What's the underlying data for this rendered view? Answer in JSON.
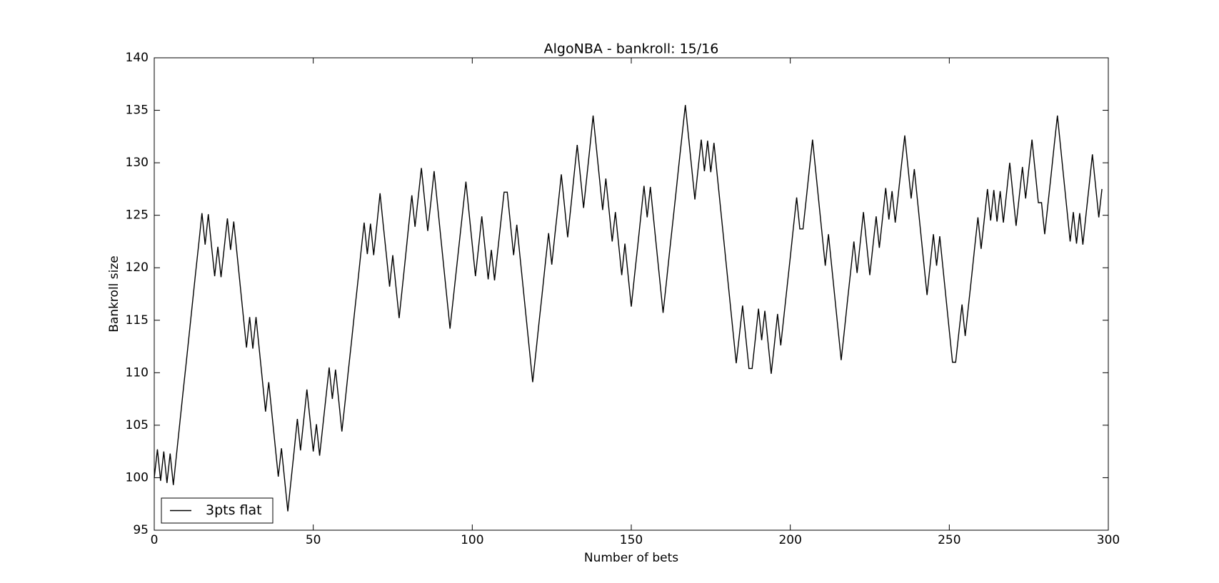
{
  "chart_data": {
    "type": "line",
    "title": "AlgoNBA - bankroll: 15/16",
    "x_label": "Number of bets",
    "y_label": "Bankroll size",
    "x": [
      0,
      1,
      2,
      3,
      4,
      5,
      6,
      7,
      8,
      9,
      10,
      11,
      12,
      13,
      14,
      15,
      16,
      17,
      18,
      19,
      20,
      21,
      22,
      23,
      24,
      25,
      26,
      27,
      28,
      29,
      30,
      31,
      32,
      33,
      34,
      35,
      36,
      37,
      38,
      39,
      40,
      41,
      42,
      43,
      44,
      45,
      46,
      47,
      48,
      49,
      50,
      51,
      52,
      53,
      54,
      55,
      56,
      57,
      58,
      59,
      60,
      61,
      62,
      63,
      64,
      65,
      66,
      67,
      68,
      69,
      70,
      71,
      72,
      73,
      74,
      75,
      76,
      77,
      78,
      79,
      80,
      81,
      82,
      83,
      84,
      85,
      86,
      87,
      88,
      89,
      90,
      91,
      92,
      93,
      94,
      95,
      96,
      97,
      98,
      99,
      100,
      101,
      102,
      103,
      104,
      105,
      106,
      107,
      108,
      109,
      110,
      111,
      112,
      113,
      114,
      115,
      116,
      117,
      118,
      119,
      120,
      121,
      122,
      123,
      124,
      125,
      126,
      127,
      128,
      129,
      130,
      131,
      132,
      133,
      134,
      135,
      136,
      137,
      138,
      139,
      140,
      141,
      142,
      143,
      144,
      145,
      146,
      147,
      148,
      149,
      150,
      151,
      152,
      153,
      154,
      155,
      156,
      157,
      158,
      159,
      160,
      161,
      162,
      163,
      164,
      165,
      166,
      167,
      168,
      169,
      170,
      171,
      172,
      173,
      174,
      175,
      176,
      177,
      178,
      179,
      180,
      181,
      182,
      183,
      184,
      185,
      186,
      187,
      188,
      189,
      190,
      191,
      192,
      193,
      194,
      195,
      196,
      197,
      198,
      199,
      200,
      201,
      202,
      203,
      204,
      205,
      206,
      207,
      208,
      209,
      210,
      211,
      212,
      213,
      214,
      215,
      216,
      217,
      218,
      219,
      220,
      221,
      222,
      223,
      224,
      225,
      226,
      227,
      228,
      229,
      230,
      231,
      232,
      233,
      234,
      235,
      236,
      237,
      238,
      239,
      240,
      241,
      242,
      243,
      244,
      245,
      246,
      247,
      248,
      249,
      250,
      251,
      252,
      253,
      254,
      255,
      256,
      257,
      258,
      259,
      260,
      261,
      262,
      263,
      264,
      265,
      266,
      267,
      268,
      269,
      270,
      271,
      272,
      273,
      274,
      275,
      276,
      277,
      278,
      279,
      280,
      281,
      282,
      283,
      284,
      285,
      286,
      287,
      288,
      289,
      290,
      291,
      292,
      293,
      294,
      295,
      296,
      297,
      298
    ],
    "series": [
      {
        "name": "3pts flat",
        "color": "#000000",
        "values": [
          100,
          102.7,
          99.7,
          102.5,
          99.5,
          102.3,
          99.3,
          102.2,
          105.1,
          108.0,
          110.8,
          113.7,
          116.6,
          119.5,
          122.3,
          125.2,
          122.2,
          125.1,
          122.1,
          119.2,
          122.0,
          119.1,
          121.9,
          124.7,
          121.7,
          124.4,
          121.4,
          118.4,
          115.4,
          112.4,
          115.3,
          112.3,
          115.3,
          112.3,
          109.3,
          106.3,
          109.1,
          106.1,
          103.1,
          100.1,
          102.8,
          99.8,
          96.8,
          99.7,
          102.6,
          105.6,
          102.6,
          105.5,
          108.4,
          105.5,
          102.5,
          105.1,
          102.1,
          104.9,
          107.7,
          110.5,
          107.5,
          110.3,
          107.4,
          104.4,
          107.2,
          110.1,
          112.9,
          115.8,
          118.6,
          121.5,
          124.3,
          121.3,
          124.2,
          121.2,
          124.1,
          127.1,
          124.1,
          121.2,
          118.2,
          121.2,
          118.2,
          115.2,
          118.1,
          121.0,
          124.0,
          126.9,
          123.9,
          126.7,
          129.5,
          126.5,
          123.5,
          126.3,
          129.2,
          126.2,
          123.2,
          120.2,
          117.2,
          114.2,
          117.0,
          119.8,
          122.6,
          125.4,
          128.2,
          125.2,
          122.2,
          119.2,
          122.0,
          124.9,
          121.9,
          118.9,
          121.7,
          118.8,
          121.6,
          124.4,
          127.2,
          127.2,
          124.2,
          121.2,
          124.1,
          121.1,
          118.1,
          115.1,
          112.1,
          109.1,
          111.9,
          114.8,
          117.6,
          120.5,
          123.3,
          120.3,
          123.2,
          126.0,
          128.9,
          125.9,
          122.9,
          125.8,
          128.8,
          131.7,
          128.7,
          125.7,
          128.6,
          131.5,
          134.5,
          131.5,
          128.5,
          125.5,
          128.5,
          125.5,
          122.5,
          125.3,
          122.3,
          119.3,
          122.3,
          119.3,
          116.3,
          119.2,
          122.0,
          124.9,
          127.8,
          124.8,
          127.7,
          124.7,
          121.7,
          118.7,
          115.7,
          118.5,
          121.4,
          124.2,
          127.0,
          129.9,
          132.7,
          135.5,
          132.5,
          129.5,
          126.5,
          129.4,
          132.2,
          129.2,
          132.1,
          129.1,
          131.9,
          128.9,
          125.9,
          122.9,
          119.9,
          116.9,
          113.9,
          110.9,
          113.6,
          116.4,
          113.4,
          110.4,
          110.4,
          113.2,
          116.1,
          113.1,
          115.9,
          112.9,
          109.9,
          112.7,
          115.6,
          112.6,
          115.4,
          118.2,
          121.0,
          123.9,
          126.7,
          123.7,
          123.7,
          126.5,
          129.4,
          132.2,
          129.2,
          126.2,
          123.2,
          120.2,
          123.2,
          120.2,
          117.2,
          114.2,
          111.2,
          114.0,
          116.9,
          119.7,
          122.5,
          119.5,
          122.4,
          125.3,
          122.3,
          119.3,
          122.1,
          124.9,
          121.9,
          124.7,
          127.6,
          124.6,
          127.3,
          124.3,
          127.1,
          129.9,
          132.6,
          129.6,
          126.6,
          129.4,
          126.4,
          123.4,
          120.4,
          117.4,
          120.3,
          123.2,
          120.2,
          123.0,
          120.0,
          117.0,
          114.0,
          111.0,
          111.0,
          113.8,
          116.5,
          113.5,
          116.3,
          119.1,
          122.0,
          124.8,
          121.8,
          124.6,
          127.5,
          124.5,
          127.4,
          124.4,
          127.3,
          124.3,
          127.1,
          130.0,
          127.0,
          124.0,
          126.8,
          129.6,
          126.6,
          129.4,
          132.2,
          129.2,
          126.2,
          126.2,
          123.2,
          126.0,
          128.8,
          131.7,
          134.5,
          131.5,
          128.5,
          125.5,
          122.5,
          125.3,
          122.3,
          125.2,
          122.2,
          125.1,
          127.9,
          130.8,
          127.8,
          124.8,
          127.5
        ]
      }
    ],
    "xlim": [
      0,
      300
    ],
    "xticks": [
      0,
      50,
      100,
      150,
      200,
      250,
      300
    ],
    "ylim": [
      95,
      140
    ],
    "yticks": [
      95,
      100,
      105,
      110,
      115,
      120,
      125,
      130,
      135,
      140
    ],
    "grid": false,
    "legend": "lower left"
  }
}
